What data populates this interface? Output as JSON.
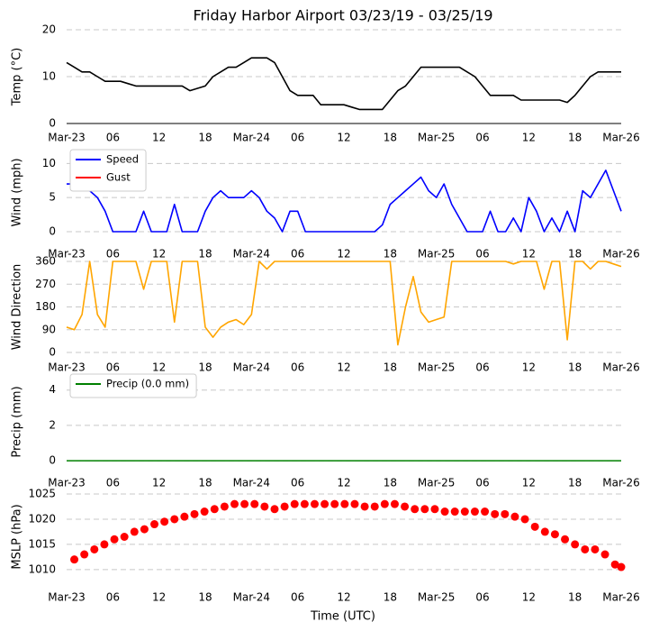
{
  "chart_data": [
    {
      "type": "line",
      "title": "Friday Harbor Airport 03/23/19 - 03/25/19",
      "ylabel": "Temp (°C)",
      "x": [
        0,
        1,
        2,
        3,
        4,
        5,
        6,
        7,
        8,
        9,
        10,
        11,
        12,
        13,
        14,
        15,
        16,
        17,
        18,
        19,
        20,
        21,
        22,
        23,
        24,
        25,
        26,
        27,
        28,
        29,
        30,
        31,
        32,
        33,
        34,
        35,
        36,
        37,
        38,
        39,
        40,
        41,
        42,
        43,
        44,
        45,
        46,
        47,
        48,
        49,
        50,
        51,
        52,
        53,
        54,
        55,
        56,
        57,
        58,
        59,
        60,
        61,
        62,
        63,
        64,
        65,
        66,
        67,
        68,
        69,
        70,
        71,
        72
      ],
      "series": [
        {
          "name": "Temp",
          "color": "#000000",
          "values": [
            13,
            12,
            11,
            11,
            10,
            9,
            9,
            9,
            8.5,
            8,
            8,
            8,
            8,
            8,
            8,
            8,
            7,
            7.5,
            8,
            10,
            11,
            12,
            12,
            13,
            14,
            14,
            14,
            13,
            10,
            7,
            6,
            6,
            6,
            4,
            4,
            4,
            4,
            3.5,
            3,
            3,
            3,
            3,
            5,
            7,
            8,
            10,
            12,
            12,
            12,
            12,
            12,
            12,
            11,
            10,
            8,
            6,
            6,
            6,
            6,
            5,
            5,
            5,
            5,
            5,
            5,
            4.5,
            6,
            8,
            10,
            11,
            11,
            11,
            11
          ]
        }
      ],
      "xlim": [
        0,
        72
      ],
      "xticks": [
        {
          "value": 0,
          "label": "Mar-23"
        },
        {
          "value": 6,
          "label": "06"
        },
        12,
        18,
        {
          "value": 24,
          "label": "Mar-24"
        },
        {
          "value": 30,
          "label": "06"
        },
        {
          "value": 36,
          "label": "12"
        },
        {
          "value": 42,
          "label": "18"
        },
        {
          "value": 48,
          "label": "Mar-25"
        },
        {
          "value": 54,
          "label": "06"
        },
        {
          "value": 60,
          "label": "12"
        },
        {
          "value": 66,
          "label": "18"
        },
        {
          "value": 72,
          "label": "Mar-26"
        }
      ],
      "ylim": [
        0,
        20
      ],
      "yticks": [
        0,
        10,
        20
      ],
      "grid": true
    },
    {
      "type": "line",
      "ylabel": "Wind (mph)",
      "legend": "upper left",
      "x": [
        0,
        1,
        2,
        3,
        4,
        5,
        6,
        7,
        8,
        9,
        10,
        11,
        12,
        13,
        14,
        15,
        16,
        17,
        18,
        19,
        20,
        21,
        22,
        23,
        24,
        25,
        26,
        27,
        28,
        29,
        30,
        31,
        32,
        33,
        34,
        35,
        36,
        37,
        38,
        39,
        40,
        41,
        42,
        43,
        44,
        45,
        46,
        47,
        48,
        49,
        50,
        51,
        52,
        53,
        54,
        55,
        56,
        57,
        58,
        59,
        60,
        61,
        62,
        63,
        64,
        65,
        66,
        67,
        68,
        69,
        70,
        71,
        72
      ],
      "series": [
        {
          "name": "Speed",
          "color": "#0000ff",
          "values": [
            7,
            7,
            8,
            6,
            5,
            3,
            0,
            0,
            0,
            0,
            3,
            0,
            0,
            0,
            4,
            0,
            0,
            0,
            3,
            5,
            6,
            5,
            5,
            5,
            6,
            5,
            3,
            2,
            0,
            3,
            3,
            0,
            0,
            0,
            0,
            0,
            0,
            0,
            0,
            0,
            0,
            1,
            4,
            5,
            6,
            7,
            8,
            6,
            5,
            7,
            4,
            2,
            0,
            0,
            0,
            3,
            0,
            0,
            2,
            0,
            5,
            3,
            0,
            2,
            0,
            3,
            0,
            6,
            5,
            7,
            9,
            6,
            3
          ]
        },
        {
          "name": "Gust",
          "color": "#ff0000",
          "values": [
            null,
            null,
            null,
            null,
            null,
            null,
            null,
            null,
            null,
            null,
            null,
            null,
            null,
            null,
            null,
            null,
            null,
            null,
            null,
            null,
            null,
            null,
            null,
            null,
            null,
            null,
            null,
            null,
            null,
            null,
            null,
            null,
            null,
            null,
            null,
            null,
            null,
            null,
            null,
            null,
            null,
            null,
            null,
            null,
            null,
            null,
            null,
            null,
            null,
            null,
            null,
            null,
            null,
            null,
            null,
            null,
            null,
            null,
            null,
            null,
            null,
            null,
            null,
            null,
            null,
            null,
            null,
            null,
            null,
            null,
            null,
            null,
            null
          ]
        }
      ],
      "xlim": [
        0,
        72
      ],
      "xticks": [
        {
          "value": 0,
          "label": "Mar-23"
        },
        {
          "value": 6,
          "label": "06"
        },
        12,
        18,
        {
          "value": 24,
          "label": "Mar-24"
        },
        {
          "value": 30,
          "label": "06"
        },
        {
          "value": 36,
          "label": "12"
        },
        {
          "value": 42,
          "label": "18"
        },
        {
          "value": 48,
          "label": "Mar-25"
        },
        {
          "value": 54,
          "label": "06"
        },
        {
          "value": 60,
          "label": "12"
        },
        {
          "value": 66,
          "label": "18"
        },
        {
          "value": 72,
          "label": "Mar-26"
        }
      ],
      "ylim": [
        0,
        11.5
      ],
      "yticks": [
        0,
        5,
        10
      ],
      "grid": true
    },
    {
      "type": "line",
      "ylabel": "Wind Direction",
      "x": [
        0,
        1,
        2,
        3,
        4,
        5,
        6,
        7,
        8,
        9,
        10,
        11,
        12,
        13,
        14,
        15,
        16,
        17,
        18,
        19,
        20,
        21,
        22,
        23,
        24,
        25,
        26,
        27,
        28,
        29,
        30,
        31,
        32,
        33,
        34,
        35,
        36,
        37,
        38,
        39,
        40,
        41,
        42,
        43,
        44,
        45,
        46,
        47,
        48,
        49,
        50,
        51,
        52,
        53,
        54,
        55,
        56,
        57,
        58,
        59,
        60,
        61,
        62,
        63,
        64,
        65,
        66,
        67,
        68,
        69,
        70,
        71,
        72
      ],
      "series": [
        {
          "name": "Direction",
          "color": "#ffa500",
          "values": [
            100,
            90,
            150,
            360,
            150,
            100,
            360,
            360,
            360,
            360,
            250,
            360,
            360,
            360,
            120,
            360,
            360,
            360,
            100,
            60,
            100,
            120,
            130,
            110,
            150,
            360,
            330,
            360,
            360,
            360,
            360,
            360,
            360,
            360,
            360,
            360,
            360,
            360,
            360,
            360,
            360,
            360,
            360,
            30,
            180,
            300,
            160,
            120,
            130,
            140,
            360,
            360,
            360,
            360,
            360,
            360,
            360,
            360,
            350,
            360,
            360,
            360,
            250,
            360,
            360,
            50,
            360,
            360,
            330,
            360,
            360,
            350,
            340
          ]
        }
      ],
      "xlim": [
        0,
        72
      ],
      "xticks": [
        {
          "value": 0,
          "label": "Mar-23"
        },
        {
          "value": 6,
          "label": "06"
        },
        12,
        18,
        {
          "value": 24,
          "label": "Mar-24"
        },
        {
          "value": 30,
          "label": "06"
        },
        {
          "value": 36,
          "label": "12"
        },
        {
          "value": 42,
          "label": "18"
        },
        {
          "value": 48,
          "label": "Mar-25"
        },
        {
          "value": 54,
          "label": "06"
        },
        {
          "value": 60,
          "label": "12"
        },
        {
          "value": 66,
          "label": "18"
        },
        {
          "value": 72,
          "label": "Mar-26"
        }
      ],
      "ylim": [
        0,
        360
      ],
      "yticks": [
        0,
        90,
        180,
        270,
        360
      ],
      "grid": true
    },
    {
      "type": "line",
      "ylabel": "Precip (mm)",
      "legend": "upper left",
      "x": [
        0,
        1,
        2,
        3,
        4,
        5,
        6,
        7,
        8,
        9,
        10,
        11,
        12,
        13,
        14,
        15,
        16,
        17,
        18,
        19,
        20,
        21,
        22,
        23,
        24,
        25,
        26,
        27,
        28,
        29,
        30,
        31,
        32,
        33,
        34,
        35,
        36,
        37,
        38,
        39,
        40,
        41,
        42,
        43,
        44,
        45,
        46,
        47,
        48,
        49,
        50,
        51,
        52,
        53,
        54,
        55,
        56,
        57,
        58,
        59,
        60,
        61,
        62,
        63,
        64,
        65,
        66,
        67,
        68,
        69,
        70,
        71,
        72
      ],
      "series": [
        {
          "name": "Precip (0.0 mm)",
          "color": "#008000",
          "values": [
            0,
            0,
            0,
            0,
            0,
            0,
            0,
            0,
            0,
            0,
            0,
            0,
            0,
            0,
            0,
            0,
            0,
            0,
            0,
            0,
            0,
            0,
            0,
            0,
            0,
            0,
            0,
            0,
            0,
            0,
            0,
            0,
            0,
            0,
            0,
            0,
            0,
            0,
            0,
            0,
            0,
            0,
            0,
            0,
            0,
            0,
            0,
            0,
            0,
            0,
            0,
            0,
            0,
            0,
            0,
            0,
            0,
            0,
            0,
            0,
            0,
            0,
            0,
            0,
            0,
            0,
            0,
            0,
            0,
            0,
            0,
            0,
            0
          ]
        }
      ],
      "xlim": [
        0,
        72
      ],
      "xticks": [
        {
          "value": 0,
          "label": "Mar-23"
        },
        {
          "value": 6,
          "label": "06"
        },
        12,
        18,
        {
          "value": 24,
          "label": "Mar-24"
        },
        {
          "value": 30,
          "label": "06"
        },
        {
          "value": 36,
          "label": "12"
        },
        {
          "value": 42,
          "label": "18"
        },
        {
          "value": 48,
          "label": "Mar-25"
        },
        {
          "value": 54,
          "label": "06"
        },
        {
          "value": 60,
          "label": "12"
        },
        {
          "value": 66,
          "label": "18"
        },
        {
          "value": 72,
          "label": "Mar-26"
        }
      ],
      "ylim": [
        -0.3,
        4.7
      ],
      "yticks": [
        0,
        2,
        4
      ],
      "grid": true
    },
    {
      "type": "scatter",
      "ylabel": "MSLP (hPa)",
      "xlabel": "Time (UTC)",
      "x": [
        1,
        2.3,
        3.6,
        4.9,
        6.2,
        7.5,
        8.8,
        10.1,
        11.4,
        12.7,
        14,
        15.3,
        16.6,
        17.9,
        19.2,
        20.5,
        21.8,
        23.1,
        24.4,
        25.7,
        27,
        28.3,
        29.6,
        30.9,
        32.2,
        33.5,
        34.8,
        36.1,
        37.4,
        38.7,
        40,
        41.3,
        42.6,
        43.9,
        45.2,
        46.5,
        47.8,
        49.1,
        50.4,
        51.7,
        53,
        54.3,
        55.6,
        56.9,
        58.2,
        59.5,
        60.8,
        62.1,
        63.4,
        64.7,
        66,
        67.3,
        68.6,
        69.9,
        71.2,
        72
      ],
      "series": [
        {
          "name": "MSLP",
          "color": "#ff0000",
          "values": [
            1012,
            1013,
            1014,
            1015,
            1016,
            1016.5,
            1017.5,
            1018,
            1019,
            1019.5,
            1020,
            1020.5,
            1021,
            1021.5,
            1022,
            1022.5,
            1023,
            1023,
            1023,
            1022.5,
            1022,
            1022.5,
            1023,
            1023,
            1023,
            1023,
            1023,
            1023,
            1023,
            1022.5,
            1022.5,
            1023,
            1023,
            1022.5,
            1022,
            1022,
            1022,
            1021.5,
            1021.5,
            1021.5,
            1021.5,
            1021.5,
            1021,
            1021,
            1020.5,
            1020,
            1018.5,
            1017.5,
            1017,
            1016,
            1015,
            1014,
            1014,
            1013,
            1011,
            1010.5
          ]
        }
      ],
      "xlim": [
        0,
        72
      ],
      "xticks": [
        {
          "value": 0,
          "label": "Mar-23"
        },
        {
          "value": 6,
          "label": "06"
        },
        12,
        18,
        {
          "value": 24,
          "label": "Mar-24"
        },
        {
          "value": 30,
          "label": "06"
        },
        {
          "value": 36,
          "label": "12"
        },
        {
          "value": 42,
          "label": "18"
        },
        {
          "value": 48,
          "label": "Mar-25"
        },
        {
          "value": 54,
          "label": "06"
        },
        {
          "value": 60,
          "label": "12"
        },
        {
          "value": 66,
          "label": "18"
        },
        {
          "value": 72,
          "label": "Mar-26"
        }
      ],
      "ylim": [
        1008,
        1025
      ],
      "yticks": [
        1010,
        1015,
        1020,
        1025
      ],
      "grid": true
    }
  ]
}
